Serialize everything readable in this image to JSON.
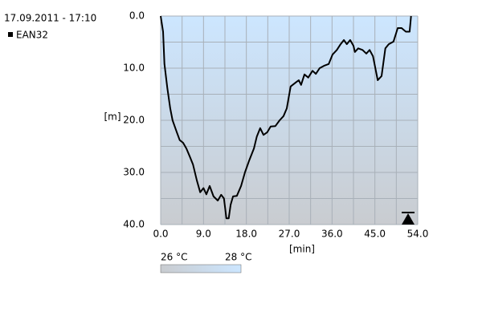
{
  "chart_data": {
    "type": "line",
    "title": "17.09.2011 - 17:10",
    "x_label": "[min]",
    "y_label": "[m]",
    "y_inverted": true,
    "grid": true,
    "legend": "top-left",
    "xlim": [
      0,
      54
    ],
    "xticks": [
      {
        "value": 0,
        "label": "0.0"
      },
      {
        "value": 9,
        "label": "9.0"
      },
      {
        "value": 18,
        "label": "18.0"
      },
      {
        "value": 27,
        "label": "27.0"
      },
      {
        "value": 36,
        "label": "36.0"
      },
      {
        "value": 45,
        "label": "45.0"
      },
      {
        "value": 54,
        "label": "54.0"
      }
    ],
    "ylim": [
      0,
      40
    ],
    "yticks": [
      {
        "value": 0,
        "label": "0.0"
      },
      {
        "value": 10,
        "label": "10.0"
      },
      {
        "value": 20,
        "label": "20.0"
      },
      {
        "value": 30,
        "label": "30.0"
      },
      {
        "value": 40,
        "label": "40.0"
      }
    ],
    "colorbar": {
      "labels": [
        "26 °C",
        "28 °C"
      ],
      "colors": [
        "#c9ccd0",
        "#cce6ff"
      ]
    },
    "x": [
      0,
      0.5,
      0.8,
      1.4,
      2,
      2.5,
      3.4,
      4,
      4.7,
      5.4,
      6.1,
      6.8,
      7.6,
      8.3,
      9,
      9.6,
      10.3,
      11.1,
      12,
      12.7,
      13.3,
      13.8,
      14.3,
      14.7,
      15.2,
      16,
      16.9,
      17.7,
      18.6,
      19.6,
      20.2,
      20.9,
      21.6,
      22.4,
      23.1,
      24.1,
      25,
      25.8,
      26.5,
      27.3,
      28.3,
      29,
      29.5,
      30.2,
      31,
      31.9,
      32.6,
      33.4,
      34.4,
      35.3,
      36.1,
      37,
      37.8,
      38.5,
      39.1,
      39.8,
      40.5,
      40.8,
      41.5,
      42.4,
      43.2,
      43.9,
      44.6,
      45.6,
      46.4,
      47.2,
      47.9,
      48.9,
      49.8,
      50.6,
      51.5,
      52.3,
      52.6
    ],
    "series": [
      {
        "name": "EAN32",
        "color": "#000000",
        "values": [
          0,
          3,
          9.2,
          13.8,
          17.7,
          20,
          22.3,
          23.8,
          24.3,
          25.4,
          26.9,
          28.5,
          31.5,
          33.8,
          33,
          34.2,
          32.6,
          34.6,
          35.4,
          34.3,
          35,
          38.8,
          38.8,
          36.2,
          34.6,
          34.5,
          32.6,
          30,
          27.7,
          25.4,
          23.1,
          21.5,
          22.8,
          22.3,
          21.2,
          21.1,
          20,
          19.2,
          17.7,
          13.5,
          12.8,
          12.3,
          13.2,
          11.2,
          11.8,
          10.5,
          11.1,
          10,
          9.5,
          9.2,
          7.4,
          6.5,
          5.4,
          4.6,
          5.4,
          4.6,
          5.7,
          6.9,
          6.2,
          6.5,
          7.2,
          6.5,
          7.7,
          12.3,
          11.5,
          6.2,
          5.4,
          4.9,
          2.3,
          2.3,
          3,
          3,
          0
        ]
      }
    ]
  }
}
